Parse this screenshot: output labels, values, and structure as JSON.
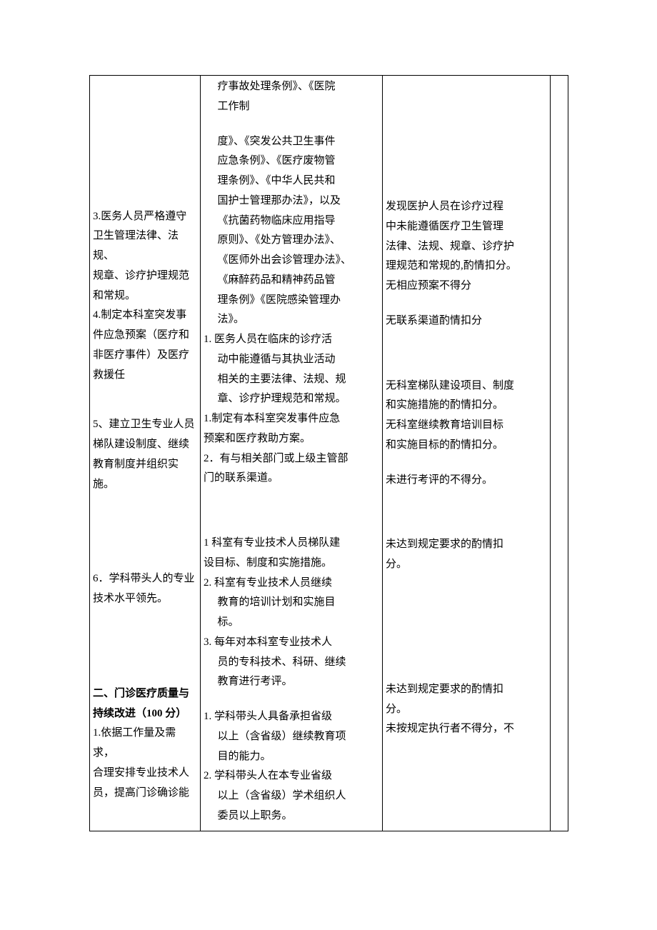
{
  "page": {
    "background": "#ffffff",
    "text_color": "#000000",
    "font_family": "SimSun",
    "font_size_pt": 11,
    "line_height": 1.85,
    "border_color": "#000000"
  },
  "col1": {
    "p1_l1": "3.医务人员严格遵守",
    "p1_l2": "卫生管理法律、法规、",
    "p1_l3": "规章、诊疗护理规范",
    "p1_l4": "和常规。",
    "p2_l1": "4.制定本科室突发事",
    "p2_l2": "件应急预案（医疗和",
    "p2_l3": "非医疗事件）及医疗",
    "p2_l4": "救援任",
    "p3_l1": "5、建立卫生专业人员",
    "p3_l2": "梯队建设制度、继续",
    "p3_l3": "教育制度并组织实施。",
    "p4_l1": "6．学科带头人的专业",
    "p4_l2": "技术水平领先。",
    "p5_l1": "二、门诊医疗质量与",
    "p5_l2": "持续改进（100 分）",
    "p6_l1": "1.依据工作量及需求，",
    "p6_l2": "合理安排专业技术人",
    "p6_l3": "员，提高门诊确诊能"
  },
  "col2": {
    "a_l1": "疗事故处理条例》、《医院",
    "a_l2": "工作制",
    "b_l1": "度》、《突发公共卫生事件",
    "b_l2": "应急条例》、《医疗废物管",
    "b_l3": "理条例》、《中华人民共和",
    "b_l4": "国护士管理那办法》，以及",
    "b_l5": "《抗菌药物临床应用指导",
    "b_l6": "原则》、《处方管理办法》、",
    "b_l7": "《医师外出会诊管理办法》、",
    "b_l8": "《麻醉药品和精神药品管",
    "b_l9": "理条例》《医院感染管理办",
    "b_l10": "法》。",
    "c_l1": "1.  医务人员在临床的诊疗活",
    "c_l2": "动中能遵循与其执业活动",
    "c_l3": "相关的主要法律、法规、规",
    "c_l4": "章、诊疗护理规范和常规。",
    "d_l1": "1.制定有本科室突发事件应急",
    "d_l2": "预案和医疗救助方案。",
    "e_l1": "2．有与相关部门或上级主管部",
    "e_l2": "门的联系渠道。",
    "f_l1": "1 科室有专业技术人员梯队建",
    "f_l2": "设目标、制度和实施措施。",
    "g_l1": "2.  科室有专业技术人员继续",
    "g_l2": "教育的培训计划和实施目",
    "g_l3": "标。",
    "h_l1": "3.  每年对本科室专业技术人",
    "h_l2": "员的专科技术、科研、继续",
    "h_l3": "教育进行考评。",
    "i_l1": "1.  学科带头人具备承担省级",
    "i_l2": "以上（含省级）继续教育项",
    "i_l3": "目的能力。",
    "j_l1": "2.  学科带头人在本专业省级",
    "j_l2": "以上（含省级）学术组织人",
    "j_l3": "委员以上职务。"
  },
  "col3": {
    "a_l1": "发现医护人员在诊疗过程",
    "a_l2": "中未能遵循医疗卫生管理",
    "a_l3": "法律、法规、规章、诊疗护",
    "a_l4": "理规范和常规的,酌情扣分。",
    "a_l5": "无相应预案不得分",
    "b_l1": "无联系渠道酌情扣分",
    "c_l1": "无科室梯队建设项目、制度",
    "c_l2": "和实施措施的酌情扣分。",
    "c_l3": "无科室继续教育培训目标",
    "c_l4": "和实施目标的酌情扣分。",
    "d_l1": "未进行考评的不得分。",
    "e_l1": "未达到规定要求的酌情扣",
    "e_l2": "分。",
    "f_l1": "未达到规定要求的酌情扣",
    "f_l2": "分。",
    "f_l3": "未按规定执行者不得分，不"
  }
}
